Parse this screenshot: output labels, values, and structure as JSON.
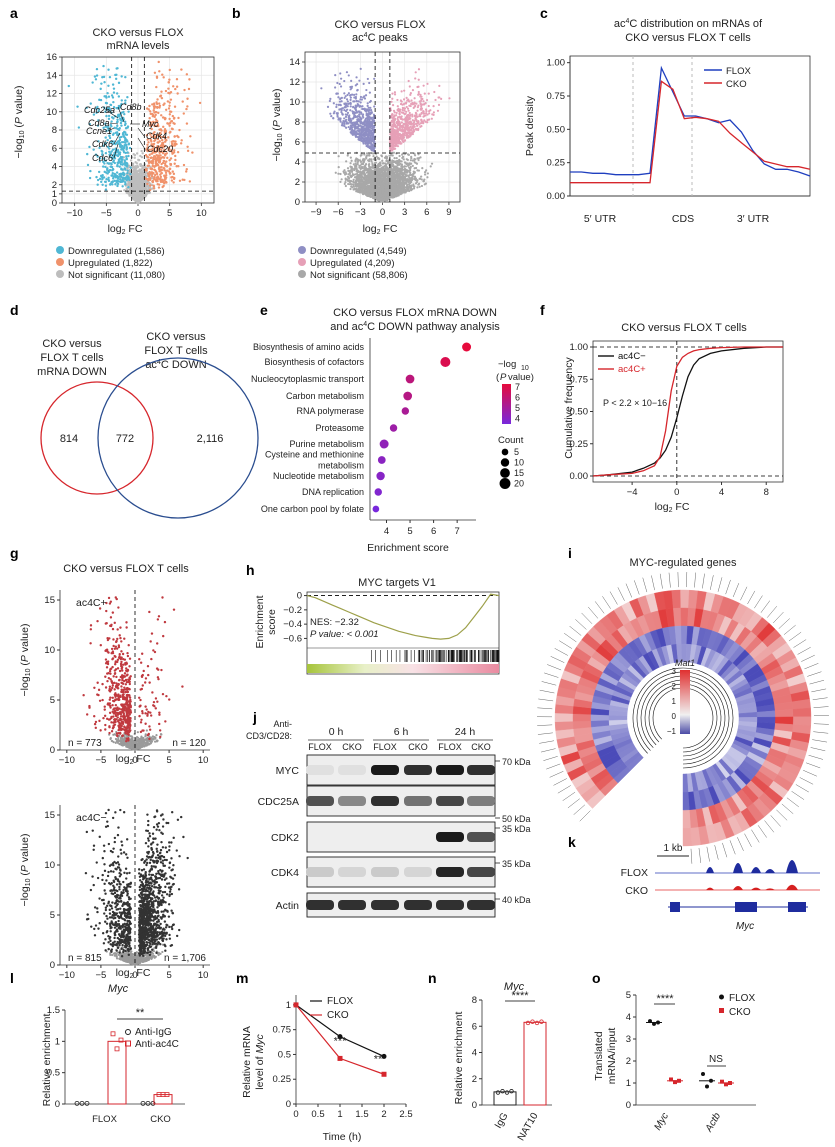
{
  "colors": {
    "down": "#4fb7d4",
    "up": "#f0926b",
    "ns": "#bdbdbd",
    "down_b": "#8f8fc4",
    "up_b": "#e6a0b7",
    "ns_b": "#a8a8a8",
    "flox": "#1f3fbf",
    "cko": "#d6262c",
    "dark": "#4a4a4a"
  },
  "panels": {
    "a": {
      "label": "a",
      "title1": "CKO versus FLOX",
      "title2": "mRNA levels",
      "genes": [
        "Cdc25a",
        "Cd8b",
        "Cd8a",
        "Myc",
        "Ccne1",
        "Cdk4",
        "Cdk6",
        "Cdc20",
        "Cdc6"
      ],
      "legend": [
        "Downregulated (1,586)",
        "Upregulated (1,822)",
        "Not significant (11,080)"
      ]
    },
    "b": {
      "label": "b",
      "title1": "CKO versus FLOX",
      "title2": "ac4C peaks",
      "legend": [
        "Downregulated (4,549)",
        "Upregulated (4,209)",
        "Not significant (58,806)"
      ]
    },
    "c": {
      "label": "c",
      "title1": "ac4C distribution on mRNAs of",
      "title2": "CKO versus FLOX T cells"
    },
    "d": {
      "label": "d",
      "left1": "CKO versus",
      "left2": "FLOX T cells",
      "left3": "mRNA DOWN",
      "right1": "CKO versus",
      "right2": "FLOX T cells",
      "right3": "ac4C DOWN",
      "n_left": "814",
      "n_mid": "772",
      "n_right": "2,116"
    },
    "e": {
      "label": "e",
      "title1": "CKO versus FLOX mRNA DOWN",
      "title2": "and ac4C DOWN pathway analysis",
      "legend_p": "−log10 (P value)",
      "legend_count": "Count"
    },
    "f": {
      "label": "f",
      "title": "CKO versus FLOX T cells",
      "pval": "P < 2.2 × 10−16"
    },
    "g": {
      "label": "g",
      "title": "CKO versus FLOX T cells",
      "top_tag": "ac4C+",
      "bottom_tag": "ac4C−",
      "n_top_left": "n = 773",
      "n_top_right": "n = 120",
      "n_bot_left": "n = 815",
      "n_bot_right": "n = 1,706"
    },
    "h": {
      "label": "h",
      "title": "MYC targets V1",
      "nes": "NES: −2.32",
      "pval": "P value: < 0.001"
    },
    "i": {
      "label": "i",
      "title": "MYC-regulated genes",
      "scale_title": "Mat1"
    },
    "j": {
      "label": "j",
      "stim": "Anti-CD3/CD28:",
      "times": [
        "0 h",
        "6 h",
        "24 h"
      ],
      "groups": [
        "FLOX",
        "CKO"
      ],
      "rows": [
        "MYC",
        "CDC25A",
        "CDK2",
        "CDK4",
        "Actin"
      ],
      "kda": [
        "70 kDa",
        "50 kDa",
        "35 kDa",
        "35 kDa",
        "40 kDa"
      ]
    },
    "k": {
      "label": "k",
      "scale": "1 kb",
      "flox": "FLOX",
      "cko": "CKO",
      "gene": "Myc"
    },
    "l": {
      "label": "l",
      "title": "Myc",
      "ylabel": "Relative enrichment",
      "sig": "**",
      "legend": [
        "Anti-IgG",
        "Anti-ac4C"
      ]
    },
    "m": {
      "label": "m",
      "xlabel": "Time (h)",
      "ylabel1": "Relative mRNA",
      "ylabel2": "level of Myc",
      "sig1": "***",
      "sig2": "**"
    },
    "n": {
      "label": "n",
      "title": "Myc",
      "ylabel": "Relative enrichment",
      "sig": "****"
    },
    "o": {
      "label": "o",
      "ylabel1": "Translated",
      "ylabel2": "mRNA/input",
      "sig1": "****",
      "sig2": "NS"
    }
  },
  "chart_data": [
    {
      "panel": "a",
      "type": "scatter",
      "title": "CKO versus FLOX mRNA levels",
      "xlabel": "log2 FC",
      "ylabel": "−log10 (P value)",
      "xlim": [
        -12,
        12
      ],
      "ylim": [
        0,
        16
      ],
      "xticks": [
        -10,
        -5,
        0,
        5,
        10
      ],
      "yticks": [
        0,
        1,
        2,
        4,
        6,
        8,
        10,
        12,
        14,
        16
      ],
      "series": [
        {
          "name": "Downregulated (1,586)",
          "n": 1586
        },
        {
          "name": "Upregulated (1,822)",
          "n": 1822
        },
        {
          "name": "Not significant (11,080)",
          "n": 11080
        }
      ]
    },
    {
      "panel": "b",
      "type": "scatter",
      "title": "CKO versus FLOX ac4C peaks",
      "xlabel": "log2 FC",
      "ylabel": "−log10 (P value)",
      "xlim": [
        -10.5,
        10.5
      ],
      "ylim": [
        0,
        15
      ],
      "xticks": [
        -9,
        -6,
        -3,
        0,
        3,
        6,
        9
      ],
      "yticks": [
        0,
        2,
        4,
        6,
        8,
        10,
        12,
        14
      ],
      "series": [
        {
          "name": "Downregulated (4,549)",
          "n": 4549
        },
        {
          "name": "Upregulated (4,209)",
          "n": 4209
        },
        {
          "name": "Not significant (58,806)",
          "n": 58806
        }
      ]
    },
    {
      "panel": "c",
      "type": "line",
      "title": "ac4C distribution on mRNAs of CKO versus FLOX T cells",
      "ylabel": "Peak density",
      "xticks": [
        "5′ UTR",
        "CDS",
        "3′ UTR"
      ],
      "ylim": [
        0,
        1
      ],
      "yticks": [
        0,
        0.25,
        0.5,
        0.75,
        1.0
      ],
      "series": [
        {
          "name": "FLOX",
          "values": [
            0.18,
            0.18,
            0.17,
            0.17,
            0.16,
            0.16,
            0.16,
            0.17,
            0.96,
            0.78,
            0.6,
            0.6,
            0.58,
            0.55,
            0.57,
            0.48,
            0.34,
            0.24,
            0.2,
            0.2,
            0.18,
            0.15
          ]
        },
        {
          "name": "CKO",
          "values": [
            0.1,
            0.1,
            0.1,
            0.1,
            0.1,
            0.1,
            0.1,
            0.1,
            0.86,
            0.8,
            0.58,
            0.59,
            0.58,
            0.56,
            0.47,
            0.4,
            0.33,
            0.26,
            0.24,
            0.22,
            0.22,
            0.2
          ]
        }
      ]
    },
    {
      "panel": "e",
      "type": "scatter",
      "title": "CKO versus FLOX mRNA DOWN and ac4C DOWN pathway analysis",
      "xlabel": "Enrichment score",
      "xlim": [
        3.3,
        7.8
      ],
      "xticks": [
        4,
        5,
        6,
        7
      ],
      "categories": [
        "Biosynthesis of amino acids",
        "Biosynthesis of cofactors",
        "Nucleocytoplasmic transport",
        "Carbon metabolism",
        "RNA polymerase",
        "Proteasome",
        "Purine metabolism",
        "Cysteine and methionine metabolism",
        "Nucleotide metabolism",
        "DNA replication",
        "One carbon pool by folate"
      ],
      "values": [
        7.4,
        6.5,
        5.0,
        4.9,
        4.8,
        4.3,
        3.9,
        3.8,
        3.75,
        3.65,
        3.55
      ],
      "pvalue": [
        7.2,
        6.8,
        5.8,
        5.6,
        5.2,
        4.8,
        4.4,
        4.2,
        4.1,
        3.9,
        3.6
      ],
      "count": [
        12,
        16,
        11,
        11,
        7,
        7,
        12,
        8,
        10,
        7,
        5
      ]
    },
    {
      "panel": "f",
      "type": "line",
      "title": "CKO versus FLOX T cells",
      "xlabel": "log2 FC",
      "ylabel": "Cumulative frequency",
      "xlim": [
        -7.5,
        9.5
      ],
      "ylim": [
        0,
        1
      ],
      "xticks": [
        -4,
        0,
        4,
        8
      ],
      "yticks": [
        0,
        0.25,
        0.5,
        0.75,
        1.0
      ],
      "x": [
        -7.5,
        -6,
        -4,
        -3,
        -2,
        -1.5,
        -1,
        -0.5,
        0,
        0.5,
        1,
        1.5,
        2,
        3,
        4,
        6,
        8,
        9.5
      ],
      "series": [
        {
          "name": "ac4C−",
          "values": [
            0,
            0.01,
            0.03,
            0.06,
            0.1,
            0.14,
            0.2,
            0.3,
            0.45,
            0.62,
            0.77,
            0.86,
            0.91,
            0.95,
            0.97,
            0.99,
            1.0,
            1.0
          ]
        },
        {
          "name": "ac4C+",
          "values": [
            0,
            0.01,
            0.02,
            0.04,
            0.08,
            0.15,
            0.35,
            0.66,
            0.85,
            0.92,
            0.95,
            0.97,
            0.98,
            0.99,
            0.995,
            1.0,
            1.0,
            1.0
          ]
        }
      ]
    },
    {
      "panel": "g",
      "type": "scatter",
      "title": "CKO versus FLOX T cells",
      "xlabel": "log2 FC",
      "ylabel": "−log10 (P value)",
      "xlim": [
        -11,
        11
      ],
      "ylim": [
        0,
        16
      ],
      "xticks": [
        -10,
        -5,
        0,
        5,
        10
      ],
      "yticks": [
        0,
        5,
        10,
        15
      ],
      "series": [
        {
          "name": "ac4C+",
          "n_left": 773,
          "n_right": 120
        },
        {
          "name": "ac4C−",
          "n_left": 815,
          "n_right": 1706
        }
      ]
    },
    {
      "panel": "h",
      "type": "line",
      "title": "MYC targets V1",
      "ylabel": "Enrichment score",
      "ylim": [
        -0.65,
        0.05
      ],
      "yticks": [
        0,
        -0.2,
        -0.4,
        -0.6
      ],
      "values": [
        0,
        -0.03,
        -0.08,
        -0.13,
        -0.18,
        -0.23,
        -0.28,
        -0.33,
        -0.38,
        -0.42,
        -0.46,
        -0.5,
        -0.53,
        -0.56,
        -0.58,
        -0.6,
        -0.61,
        -0.6,
        -0.55,
        -0.45,
        -0.3,
        -0.15,
        0.02,
        0
      ]
    },
    {
      "panel": "i",
      "type": "heatmap",
      "title": "MYC-regulated genes",
      "scale_title": "Mat1",
      "scale": [
        -1,
        0,
        1,
        2,
        3
      ]
    },
    {
      "panel": "l",
      "type": "bar",
      "title": "Myc",
      "ylabel": "Relative enrichment",
      "categories": [
        "FLOX",
        "CKO"
      ],
      "ylim": [
        0,
        1.5
      ],
      "yticks": [
        0,
        0.5,
        1.0,
        1.5
      ],
      "series": [
        {
          "name": "Anti-IgG",
          "values": [
            0.01,
            0.01
          ]
        },
        {
          "name": "Anti-ac4C",
          "values": [
            1.0,
            0.15
          ]
        }
      ]
    },
    {
      "panel": "m",
      "type": "line",
      "xlabel": "Time (h)",
      "ylabel": "Relative mRNA level of Myc",
      "x": [
        0,
        1,
        2
      ],
      "xlim": [
        0,
        2.5
      ],
      "ylim": [
        0,
        1.1
      ],
      "xticks": [
        0,
        0.5,
        1.0,
        1.5,
        2.0,
        2.5
      ],
      "yticks": [
        0,
        0.25,
        0.5,
        0.75,
        1.0
      ],
      "series": [
        {
          "name": "FLOX",
          "values": [
            1.0,
            0.68,
            0.48
          ]
        },
        {
          "name": "CKO",
          "values": [
            1.0,
            0.46,
            0.3
          ]
        }
      ]
    },
    {
      "panel": "n",
      "type": "bar",
      "title": "Myc",
      "ylabel": "Relative enrichment",
      "categories": [
        "IgG",
        "NAT10"
      ],
      "ylim": [
        0,
        8
      ],
      "yticks": [
        0,
        2,
        4,
        6,
        8
      ],
      "values": [
        1.0,
        6.3
      ]
    },
    {
      "panel": "o",
      "type": "scatter",
      "ylabel": "Translated mRNA/input",
      "categories": [
        "Myc",
        "Actb"
      ],
      "ylim": [
        0,
        5
      ],
      "yticks": [
        0,
        1,
        2,
        3,
        4,
        5
      ],
      "series": [
        {
          "name": "FLOX",
          "values": [
            3.75,
            1.1
          ]
        },
        {
          "name": "CKO",
          "values": [
            1.1,
            1.0
          ]
        }
      ]
    }
  ]
}
